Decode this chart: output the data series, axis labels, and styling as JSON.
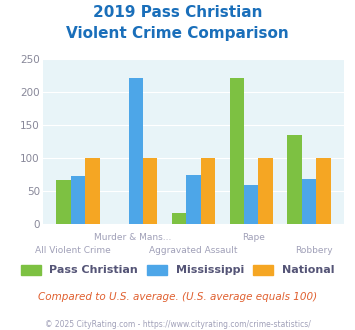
{
  "title_line1": "2019 Pass Christian",
  "title_line2": "Violent Crime Comparison",
  "categories": [
    "All Violent Crime",
    "Murder & Mans...",
    "Aggravated Assault",
    "Rape",
    "Robbery"
  ],
  "row1_labels": [
    "",
    "Murder & Mans...",
    "",
    "Rape",
    ""
  ],
  "row2_labels": [
    "All Violent Crime",
    "",
    "Aggravated Assault",
    "",
    "Robbery"
  ],
  "pass_christian": [
    68,
    0,
    18,
    222,
    136
  ],
  "mississippi": [
    74,
    222,
    75,
    60,
    69
  ],
  "national": [
    100,
    100,
    100,
    100,
    100
  ],
  "colors": {
    "pass_christian": "#7dc142",
    "mississippi": "#4da6e8",
    "national": "#f5a623",
    "background": "#e8f4f8",
    "title": "#1a6fba",
    "axis_label": "#a0a0b8",
    "footnote": "#e06030",
    "copyright": "#a0a0b8"
  },
  "ylim": [
    0,
    250
  ],
  "yticks": [
    0,
    50,
    100,
    150,
    200,
    250
  ],
  "footnote": "Compared to U.S. average. (U.S. average equals 100)",
  "copyright": "© 2025 CityRating.com - https://www.cityrating.com/crime-statistics/",
  "legend_labels": [
    "Pass Christian",
    "Mississippi",
    "National"
  ]
}
